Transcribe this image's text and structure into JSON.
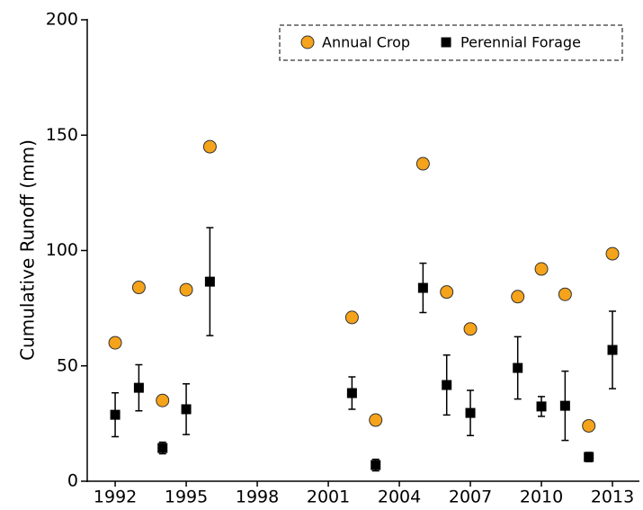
{
  "chart_data": {
    "type": "scatter",
    "ylabel": "Cumulative Runoff (mm)",
    "xlim": [
      1990.82,
      2014.1
    ],
    "xticks": [
      1992,
      1995,
      1998,
      2001,
      2004,
      2007,
      2010,
      2013
    ],
    "ylim": [
      0,
      200
    ],
    "yticks": [
      0,
      50,
      100,
      150,
      200
    ],
    "legend": "upper right",
    "series": [
      {
        "name": "Annual Crop",
        "color": "#f5a31a",
        "marker": "circle",
        "x": [
          1992,
          1993,
          1994,
          1995,
          1996,
          2002,
          2003,
          2005,
          2006,
          2007,
          2009,
          2010,
          2011,
          2012,
          2013
        ],
        "values": [
          60,
          84,
          35,
          83,
          145,
          71,
          26.5,
          137.6,
          82,
          66,
          80,
          92,
          81,
          24,
          98.6
        ]
      },
      {
        "name": "Perennial Forage",
        "color": "#000000",
        "marker": "square",
        "x": [
          1992,
          1993,
          1994,
          1995,
          1996,
          2002,
          2003,
          2005,
          2006,
          2007,
          2009,
          2010,
          2011,
          2012,
          2013
        ],
        "values": [
          28.8,
          40.5,
          14.4,
          31.2,
          86.5,
          38.2,
          7,
          83.8,
          41.7,
          29.6,
          49.1,
          32.4,
          32.7,
          10.5,
          56.9
        ],
        "errors": [
          9.5,
          10,
          2.5,
          11,
          23.4,
          7,
          2.5,
          10.7,
          13,
          9.8,
          13.5,
          4.3,
          15,
          2,
          16.8
        ]
      }
    ]
  }
}
